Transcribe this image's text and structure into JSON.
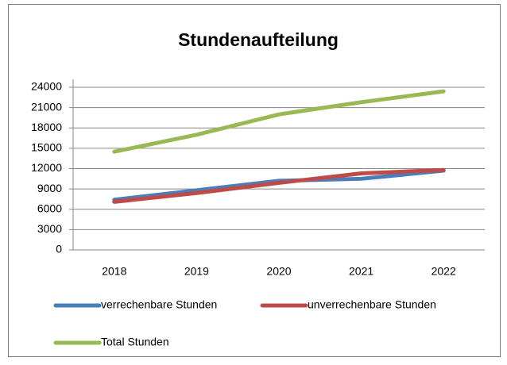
{
  "chart_data": {
    "type": "line",
    "title": "Stundenaufteilung",
    "categories": [
      "2018",
      "2019",
      "2020",
      "2021",
      "2022"
    ],
    "series": [
      {
        "name": "verrechenbare Stunden",
        "color": "#4a7ebb",
        "values": [
          7400,
          8800,
          10200,
          10500,
          11700
        ]
      },
      {
        "name": "unverrechenbare Stunden",
        "color": "#be4b48",
        "values": [
          7100,
          8400,
          9900,
          11300,
          11800
        ]
      },
      {
        "name": "Total Stunden",
        "color": "#98b954",
        "values": [
          14500,
          17000,
          20000,
          21800,
          23400
        ]
      }
    ],
    "ylim": [
      0,
      24000
    ],
    "yticks": [
      0,
      3000,
      6000,
      9000,
      12000,
      15000,
      18000,
      21000,
      24000
    ],
    "grid": true,
    "legend": "bottom"
  }
}
